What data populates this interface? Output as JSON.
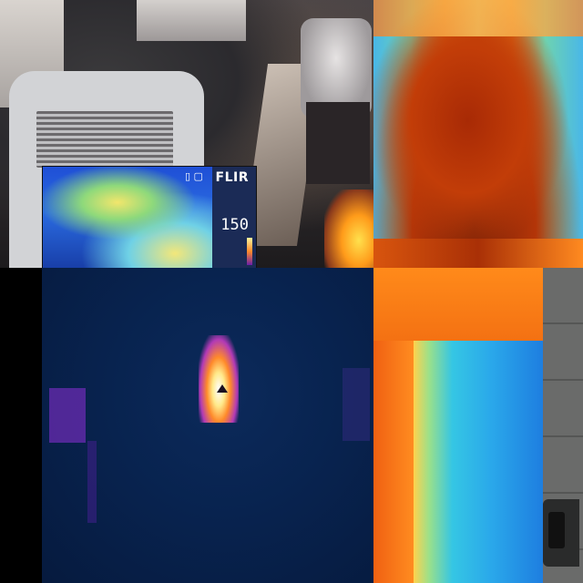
{
  "flir_inset": {
    "brand": "FLIR",
    "status_icons": "▯ ▢",
    "temperature_reading": "150"
  }
}
